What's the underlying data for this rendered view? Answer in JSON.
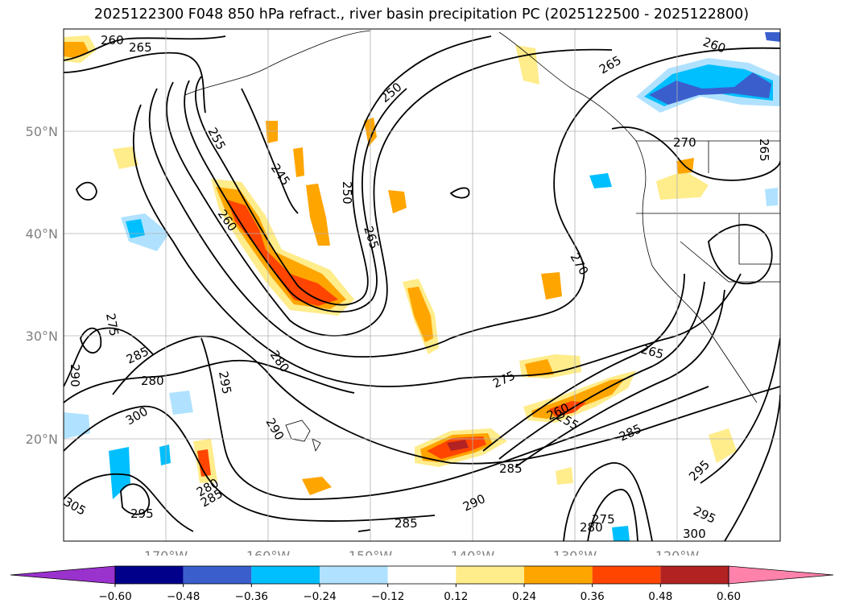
{
  "title": "2025122300 F048 850 hPa refract., river basin precipitation PC (2025122500 - 2025122800)",
  "axes": {
    "lat_labels": [
      "50°N",
      "40°N",
      "30°N",
      "20°N"
    ],
    "lon_labels": [
      "170°W",
      "160°W",
      "150°W",
      "140°W",
      "130°W",
      "120°W"
    ]
  },
  "contour_labels": [
    "260",
    "265",
    "250",
    "255",
    "245",
    "250",
    "260",
    "265",
    "270",
    "275",
    "285",
    "290",
    "280",
    "295",
    "300",
    "305",
    "290",
    "280",
    "285",
    "280",
    "285",
    "295",
    "290",
    "285",
    "275",
    "260",
    "255",
    "265",
    "285",
    "295",
    "295",
    "300",
    "275",
    "280",
    "270",
    "265"
  ],
  "colorbar": {
    "ticks": [
      "−0.60",
      "−0.48",
      "−0.36",
      "−0.24",
      "−0.12",
      "0.12",
      "0.24",
      "0.36",
      "0.48",
      "0.60"
    ],
    "colors": [
      "#9a32cd",
      "#00008b",
      "#3a5fcd",
      "#00bfff",
      "#b0e2ff",
      "#ffffff",
      "#ffec8b",
      "#ffa500",
      "#ff4500",
      "#b22222",
      "#ff82ab"
    ]
  }
}
